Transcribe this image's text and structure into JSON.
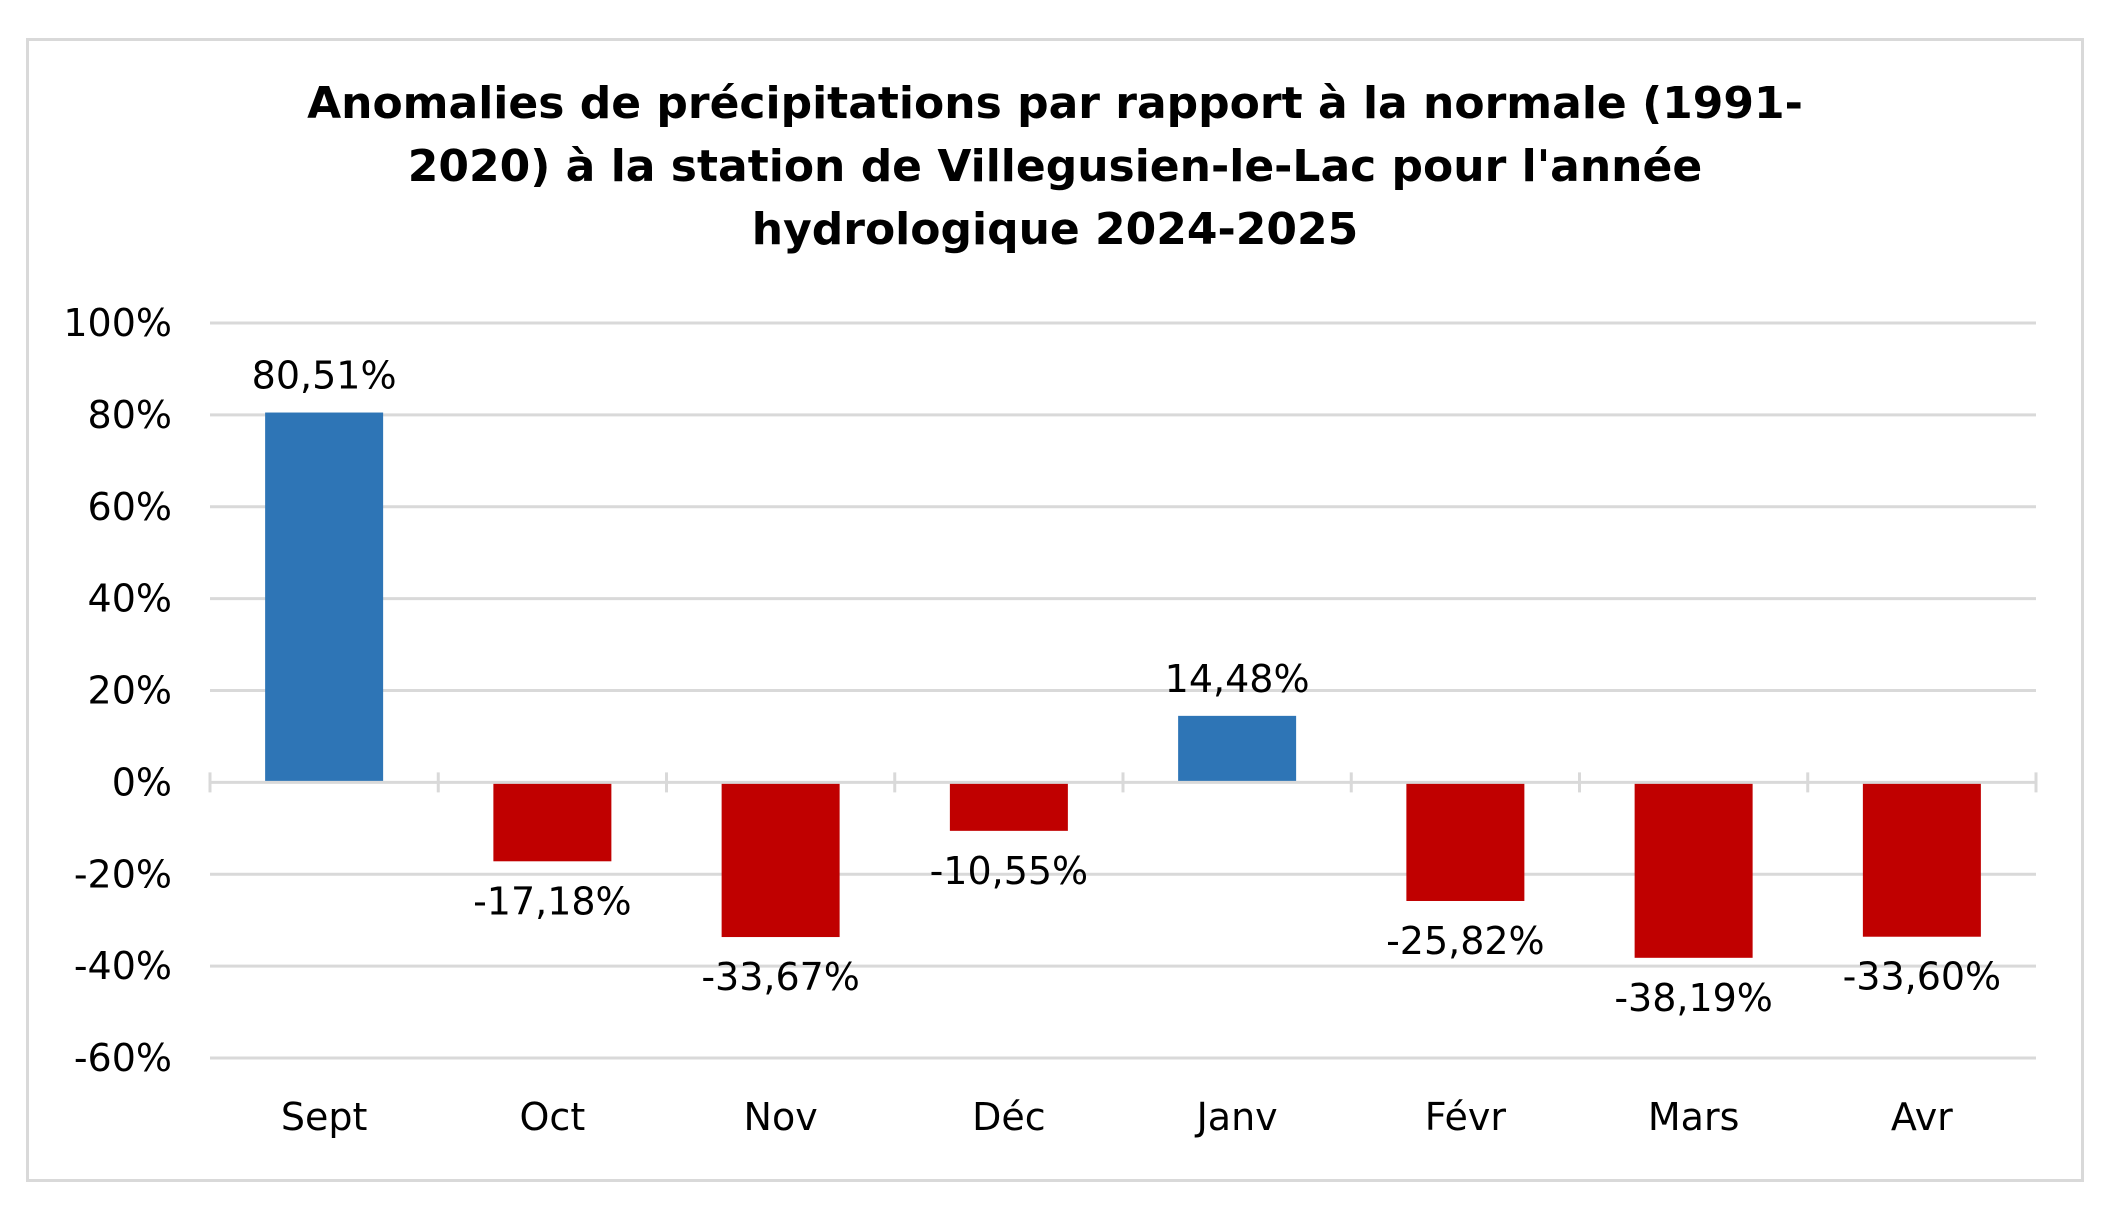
{
  "chart_data": {
    "type": "bar",
    "title_lines": [
      "Anomalies de précipitations par rapport à la normale (1991-",
      "2020) à la station de Villegusien-le-Lac pour l'année",
      "hydrologique 2024-2025"
    ],
    "categories": [
      "Sept",
      "Oct",
      "Nov",
      "Déc",
      "Janv",
      "Févr",
      "Mars",
      "Avr"
    ],
    "values": [
      80.51,
      -17.18,
      -33.67,
      -10.55,
      14.48,
      -25.82,
      -38.19,
      -33.6
    ],
    "data_labels": [
      "80,51%",
      "-17,18%",
      "-33,67%",
      "-10,55%",
      "14,48%",
      "-25,82%",
      "-38,19%",
      "-33,60%"
    ],
    "ylim": [
      -60,
      100
    ],
    "yticks": [
      100,
      80,
      60,
      40,
      20,
      0,
      -20,
      -40,
      -60
    ],
    "ytick_labels": [
      "100%",
      "80%",
      "60%",
      "40%",
      "20%",
      "0%",
      "-20%",
      "-40%",
      "-60%"
    ],
    "xlabel": "",
    "ylabel": "",
    "grid": true,
    "colors": {
      "positive": "#2E75B6",
      "negative": "#C00000",
      "grid": "#d9d9d9",
      "axis": "#d9d9d9"
    }
  }
}
